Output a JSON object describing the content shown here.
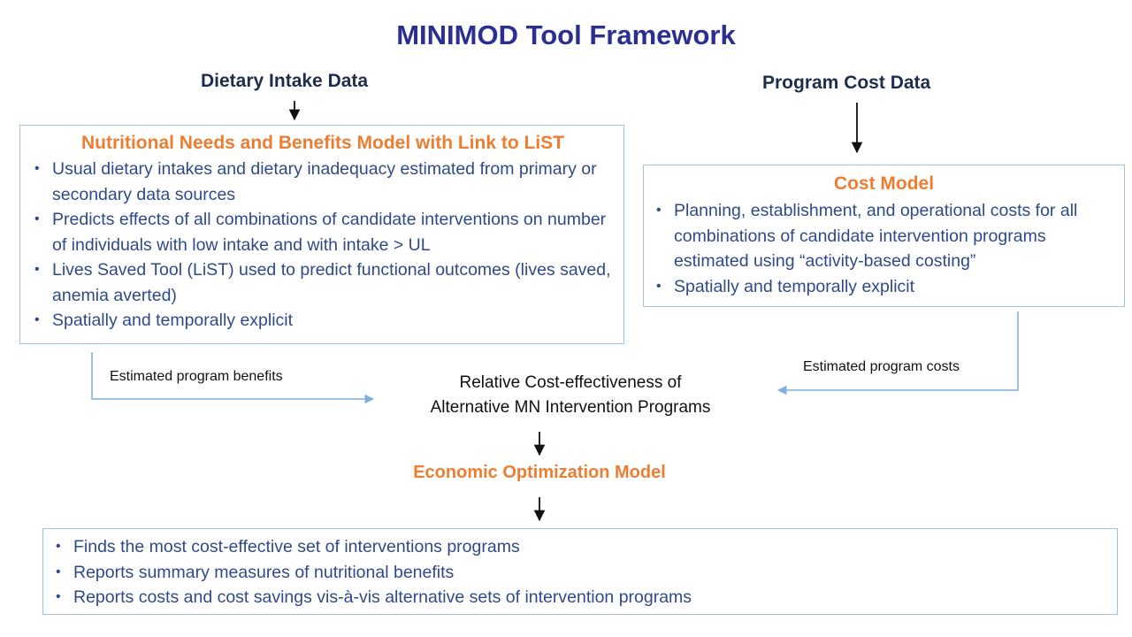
{
  "title": "MINIMOD Tool Framework",
  "inputs": {
    "dietary": "Dietary Intake Data",
    "program_cost": "Program Cost Data"
  },
  "nutrition_model": {
    "title": "Nutritional Needs and Benefits Model with Link to LiST",
    "bullets": [
      "Usual dietary intakes and dietary inadequacy estimated from primary or secondary data sources",
      "Predicts effects of all combinations of candidate interventions on number of individuals with low intake and with intake > UL",
      "Lives Saved Tool (LiST) used to predict functional outcomes (lives saved, anemia averted)",
      "Spatially and temporally explicit"
    ]
  },
  "cost_model": {
    "title": "Cost Model",
    "bullets": [
      "Planning, establishment, and operational costs for all combinations of candidate intervention programs estimated using “activity-based costing”",
      "Spatially and temporally explicit"
    ]
  },
  "flows": {
    "benefits": "Estimated program benefits",
    "costs": "Estimated program costs"
  },
  "center": {
    "line1": "Relative Cost-effectiveness of",
    "line2": "Alternative MN Intervention Programs"
  },
  "optimization": {
    "title": "Economic Optimization Model",
    "bullets": [
      "Finds the most cost-effective set of interventions programs",
      "Reports summary measures of nutritional benefits",
      "Reports costs and cost savings vis-à-vis alternative sets of intervention programs"
    ]
  },
  "colors": {
    "title": "#2a2f91",
    "accent": "#ed7d31",
    "bullet_text": "#2e4a8a",
    "box_border": "#9dc3e6",
    "connector": "#7fb0dc"
  }
}
